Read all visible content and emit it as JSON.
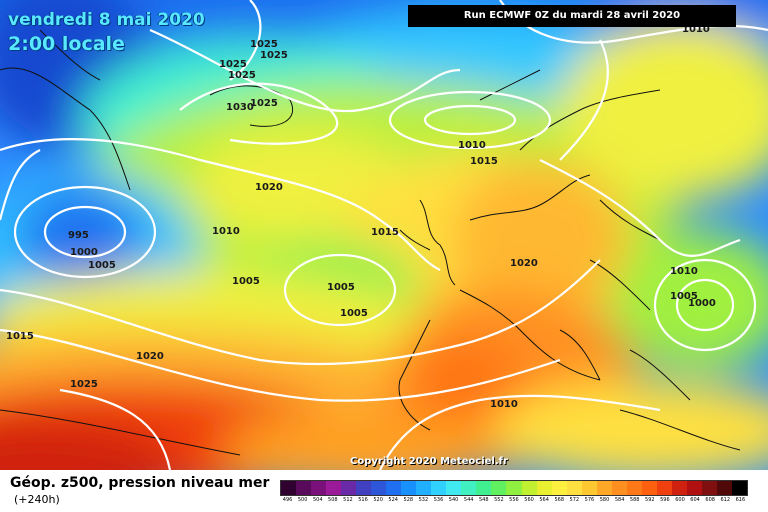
{
  "map": {
    "date_line": "vendredi 8 mai 2020",
    "time_line": "2:00 locale",
    "run_info": "Run ECMWF 0Z du mardi 28 avril 2020",
    "copyright": "Copyright 2020 Meteociel.fr",
    "pressure_labels": [
      "1025",
      "1025",
      "1025",
      "1025",
      "1030",
      "1025",
      "1010",
      "1015",
      "1010",
      "1020",
      "1010",
      "1015",
      "995",
      "1000",
      "1005",
      "1020",
      "1005",
      "1005",
      "1005",
      "1010",
      "1005",
      "1000",
      "1015",
      "1020",
      "1025",
      "1010"
    ]
  },
  "legend": {
    "title": "Géop. z500, pression niveau mer",
    "subtitle": "(+240h)",
    "scale_labels": [
      "496",
      "500",
      "504",
      "508",
      "512",
      "516",
      "520",
      "524",
      "528",
      "532",
      "536",
      "540",
      "544",
      "548",
      "552",
      "556",
      "560",
      "564",
      "568",
      "572",
      "576",
      "580",
      "584",
      "588",
      "592",
      "596",
      "600",
      "604",
      "608",
      "612",
      "616"
    ],
    "scale_colors": [
      "#300030",
      "#5a0a5a",
      "#7a107a",
      "#9a1a9a",
      "#6a2aa8",
      "#4040c0",
      "#2e56d8",
      "#1f6ff0",
      "#1890ff",
      "#20b0ff",
      "#30d0ff",
      "#40e8f0",
      "#40f0c0",
      "#40f090",
      "#60f060",
      "#90f040",
      "#c0f030",
      "#e8f030",
      "#fff040",
      "#ffe040",
      "#ffc830",
      "#ffa828",
      "#ff9020",
      "#ff7818",
      "#ff6010",
      "#f04010",
      "#d02010",
      "#b01010",
      "#801010",
      "#500808",
      "#000000"
    ]
  }
}
